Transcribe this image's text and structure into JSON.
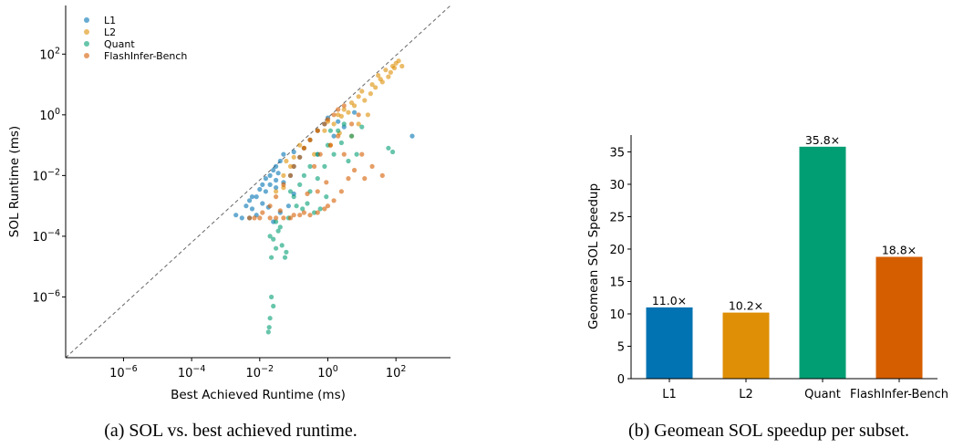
{
  "chart_data": [
    {
      "type": "scatter",
      "xlabel": "Best Achieved Runtime (ms)",
      "ylabel": "SOL Runtime (ms)",
      "xscale": "log",
      "yscale": "log",
      "xlim": [
        2e-08,
        4000
      ],
      "ylim": [
        1e-08,
        4000
      ],
      "xticks": [
        1e-06,
        0.0001,
        0.01,
        1,
        100
      ],
      "xtick_labels": [
        "10^-6",
        "10^-4",
        "10^-2",
        "10^0",
        "10^2"
      ],
      "yticks": [
        1e-06,
        0.0001,
        0.01,
        1,
        100
      ],
      "ytick_labels": [
        "10^-6",
        "10^-4",
        "10^-2",
        "10^0",
        "10^2"
      ],
      "reference_line": "y = x (dashed)",
      "legend_position": "top-left",
      "grid": false,
      "series": [
        {
          "name": "L1",
          "color": "#0173b2",
          "points": [
            [
              0.003,
              0.0004
            ],
            [
              0.005,
              0.0004
            ],
            [
              0.008,
              0.0005
            ],
            [
              0.004,
              0.001
            ],
            [
              0.006,
              0.002
            ],
            [
              0.01,
              0.0035
            ],
            [
              0.012,
              0.005
            ],
            [
              0.015,
              0.008
            ],
            [
              0.02,
              0.01
            ],
            [
              0.025,
              0.015
            ],
            [
              0.03,
              0.02
            ],
            [
              0.04,
              0.03
            ],
            [
              0.05,
              0.05
            ],
            [
              0.02,
              0.005
            ],
            [
              0.03,
              0.004
            ],
            [
              0.05,
              0.006
            ],
            [
              0.08,
              0.01
            ],
            [
              0.1,
              0.02
            ],
            [
              0.15,
              0.04
            ],
            [
              0.2,
              0.08
            ],
            [
              0.3,
              0.15
            ],
            [
              0.5,
              0.3
            ],
            [
              0.8,
              0.5
            ],
            [
              1.0,
              0.8
            ],
            [
              0.005,
              0.0015
            ],
            [
              0.008,
              0.002
            ],
            [
              0.04,
              0.0006
            ],
            [
              0.07,
              0.001
            ],
            [
              0.1,
              0.0025
            ],
            [
              0.5,
              0.05
            ],
            [
              1.5,
              0.2
            ],
            [
              2.0,
              0.6
            ],
            [
              0.012,
              0.0012
            ],
            [
              0.018,
              0.0009
            ],
            [
              0.006,
              0.0008
            ],
            [
              0.03,
              0.007
            ],
            [
              0.002,
              0.0005
            ],
            [
              3.0,
              0.4
            ],
            [
              6.0,
              1.2
            ],
            [
              0.1,
              0.06
            ],
            [
              300,
              0.2
            ],
            [
              0.025,
              0.0003
            ],
            [
              0.015,
              0.003
            ],
            [
              0.035,
              0.012
            ]
          ]
        },
        {
          "name": "L2",
          "color": "#de8f05",
          "points": [
            [
              0.5,
              0.3
            ],
            [
              1.0,
              0.6
            ],
            [
              2.0,
              1.0
            ],
            [
              3.0,
              1.5
            ],
            [
              5.0,
              2.5
            ],
            [
              8.0,
              4.0
            ],
            [
              10,
              6.0
            ],
            [
              20,
              10
            ],
            [
              30,
              20
            ],
            [
              50,
              30
            ],
            [
              80,
              40
            ],
            [
              100,
              50
            ],
            [
              150,
              40
            ],
            [
              0.2,
              0.08
            ],
            [
              0.3,
              0.15
            ],
            [
              0.8,
              0.3
            ],
            [
              1.5,
              0.5
            ],
            [
              2.5,
              0.9
            ],
            [
              4.0,
              1.2
            ],
            [
              6.0,
              2.0
            ],
            [
              12,
              3.0
            ],
            [
              18,
              5.0
            ],
            [
              25,
              8.0
            ],
            [
              40,
              12
            ],
            [
              60,
              18
            ],
            [
              70,
              25
            ],
            [
              0.1,
              0.04
            ],
            [
              0.15,
              0.1
            ],
            [
              5,
              0.2
            ],
            [
              8,
              0.5
            ],
            [
              15,
              1.0
            ],
            [
              0.05,
              0.01
            ],
            [
              0.08,
              0.02
            ],
            [
              0.06,
              0.03
            ],
            [
              120,
              60
            ],
            [
              90,
              35
            ],
            [
              35,
              15
            ],
            [
              0.4,
              0.05
            ],
            [
              1.2,
              0.1
            ],
            [
              2.2,
              0.25
            ],
            [
              0.03,
              0.003
            ],
            [
              0.05,
              0.004
            ]
          ]
        },
        {
          "name": "Quant",
          "color": "#029e73",
          "points": [
            [
              0.03,
              0.0003
            ],
            [
              0.04,
              0.0002
            ],
            [
              0.035,
              0.00015
            ],
            [
              0.02,
              0.0001
            ],
            [
              0.025,
              8e-05
            ],
            [
              0.045,
              5e-05
            ],
            [
              0.03,
              4e-05
            ],
            [
              0.022,
              2e-05
            ],
            [
              0.06,
              3e-05
            ],
            [
              0.055,
              2e-05
            ],
            [
              0.022,
              1e-06
            ],
            [
              0.025,
              5e-07
            ],
            [
              0.02,
              2e-07
            ],
            [
              0.018,
              7e-08
            ],
            [
              0.019,
              1e-07
            ],
            [
              0.1,
              0.002
            ],
            [
              0.15,
              0.005
            ],
            [
              0.2,
              0.01
            ],
            [
              0.3,
              0.02
            ],
            [
              0.5,
              0.05
            ],
            [
              1.0,
              0.1
            ],
            [
              2.0,
              0.3
            ],
            [
              3.0,
              0.5
            ],
            [
              0.08,
              0.003
            ],
            [
              0.12,
              0.001
            ],
            [
              0.3,
              0.003
            ],
            [
              0.5,
              0.008
            ],
            [
              0.8,
              0.02
            ],
            [
              1.5,
              0.05
            ],
            [
              2.5,
              0.12
            ],
            [
              5.0,
              0.2
            ],
            [
              10,
              0.4
            ],
            [
              60,
              0.08
            ],
            [
              80,
              0.06
            ],
            [
              0.4,
              0.0006
            ],
            [
              0.6,
              0.0008
            ],
            [
              0.9,
              0.002
            ],
            [
              0.07,
              0.0004
            ],
            [
              4.0,
              0.03
            ],
            [
              7.0,
              0.05
            ],
            [
              0.25,
              0.0012
            ],
            [
              1.2,
              0.3
            ],
            [
              0.18,
              0.0008
            ]
          ]
        },
        {
          "name": "FlashInfer-Bench",
          "color": "#d55e00",
          "points": [
            [
              0.005,
              0.0004
            ],
            [
              0.01,
              0.0004
            ],
            [
              0.02,
              0.0004
            ],
            [
              0.03,
              0.0004
            ],
            [
              0.05,
              0.0004
            ],
            [
              0.08,
              0.0004
            ],
            [
              0.1,
              0.0005
            ],
            [
              0.15,
              0.0005
            ],
            [
              0.2,
              0.0006
            ],
            [
              0.3,
              0.0005
            ],
            [
              0.5,
              0.0006
            ],
            [
              0.8,
              0.0008
            ],
            [
              1.0,
              0.001
            ],
            [
              0.02,
              0.001
            ],
            [
              0.03,
              0.002
            ],
            [
              0.05,
              0.005
            ],
            [
              0.08,
              0.01
            ],
            [
              0.1,
              0.02
            ],
            [
              0.15,
              0.04
            ],
            [
              0.2,
              0.08
            ],
            [
              0.3,
              0.15
            ],
            [
              0.5,
              0.3
            ],
            [
              0.8,
              0.5
            ],
            [
              1.0,
              0.7
            ],
            [
              1.5,
              1.0
            ],
            [
              2.0,
              1.5
            ],
            [
              3.0,
              2.0
            ],
            [
              0.4,
              0.02
            ],
            [
              0.6,
              0.05
            ],
            [
              1.2,
              0.1
            ],
            [
              2.0,
              0.2
            ],
            [
              3.0,
              0.05
            ],
            [
              2.5,
              0.003
            ],
            [
              4.0,
              0.008
            ],
            [
              6.0,
              0.015
            ],
            [
              10,
              0.05
            ],
            [
              20,
              0.02
            ],
            [
              40,
              0.01
            ],
            [
              12,
              0.008
            ],
            [
              1.5,
              0.0015
            ],
            [
              0.25,
              0.0025
            ],
            [
              0.04,
              0.0007
            ],
            [
              0.007,
              0.0004
            ],
            [
              0.012,
              0.0006
            ],
            [
              0.5,
              0.003
            ],
            [
              0.9,
              0.006
            ],
            [
              5.0,
              0.5
            ],
            [
              8.0,
              1.0
            ]
          ]
        }
      ]
    },
    {
      "type": "bar",
      "ylabel": "Geomean SOL Speedup",
      "categories": [
        "L1",
        "L2",
        "Quant",
        "FlashInfer-Bench"
      ],
      "values": [
        11.0,
        10.2,
        35.8,
        18.8
      ],
      "data_labels": [
        "11.0×",
        "10.2×",
        "35.8×",
        "18.8×"
      ],
      "colors": [
        "#0173b2",
        "#de8f05",
        "#029e73",
        "#d55e00"
      ],
      "ylim": [
        0,
        37.6
      ],
      "yticks": [
        0,
        5,
        10,
        15,
        20,
        25,
        30,
        35
      ],
      "grid": false
    }
  ],
  "captions": {
    "left": "(a) SOL vs. best achieved runtime.",
    "right": "(b) Geomean SOL speedup per subset."
  }
}
